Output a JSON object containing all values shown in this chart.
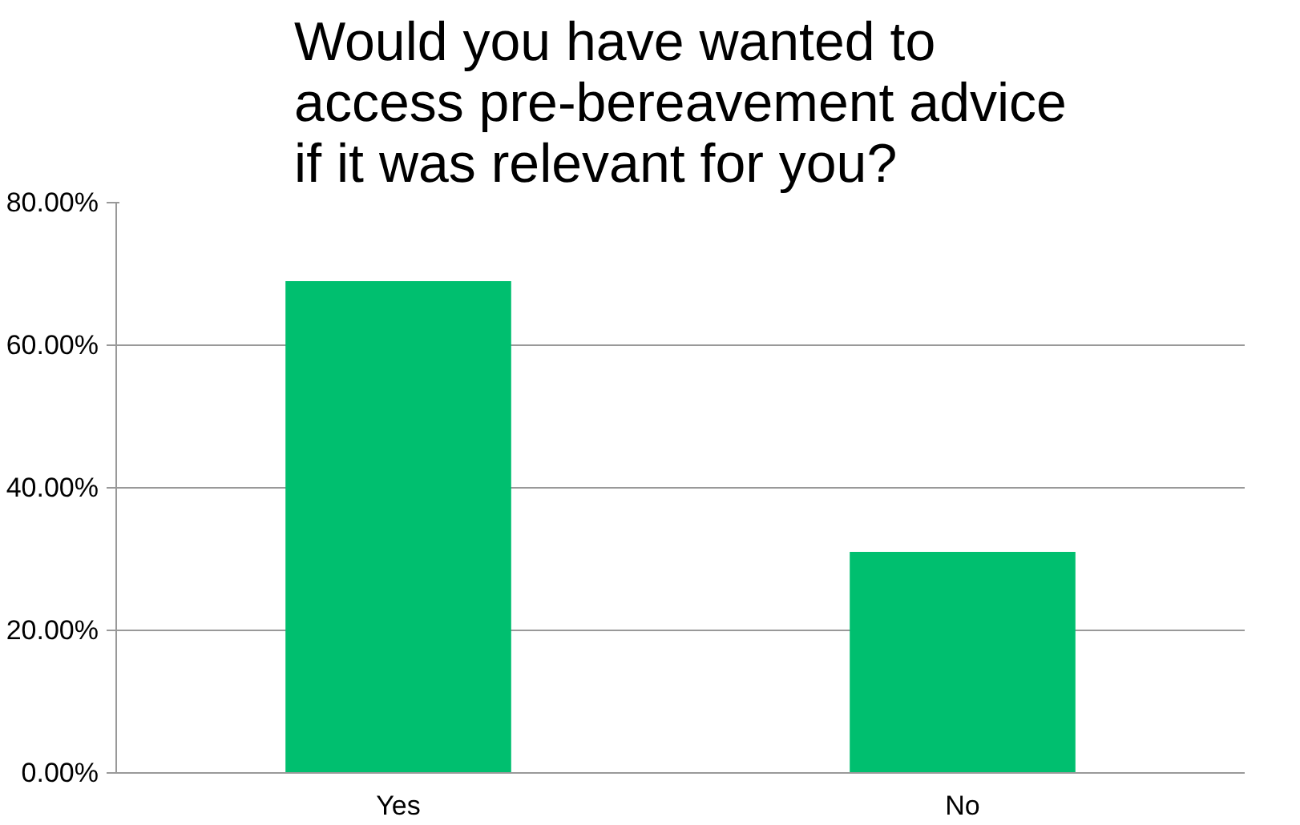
{
  "chart_data": {
    "type": "bar",
    "title": "Would you have wanted to access pre-bereavement advice if it was relevant for you?",
    "categories": [
      "Yes",
      "No"
    ],
    "values": [
      69,
      31
    ],
    "color": "#00bf6f",
    "ylim": [
      0,
      80
    ],
    "yticks": [
      {
        "value": 0,
        "label": "0.00%"
      },
      {
        "value": 20,
        "label": "20.00%"
      },
      {
        "value": 40,
        "label": "40.00%"
      },
      {
        "value": 60,
        "label": "60.00%"
      },
      {
        "value": 80,
        "label": "80.00%"
      }
    ],
    "grid": "y"
  }
}
